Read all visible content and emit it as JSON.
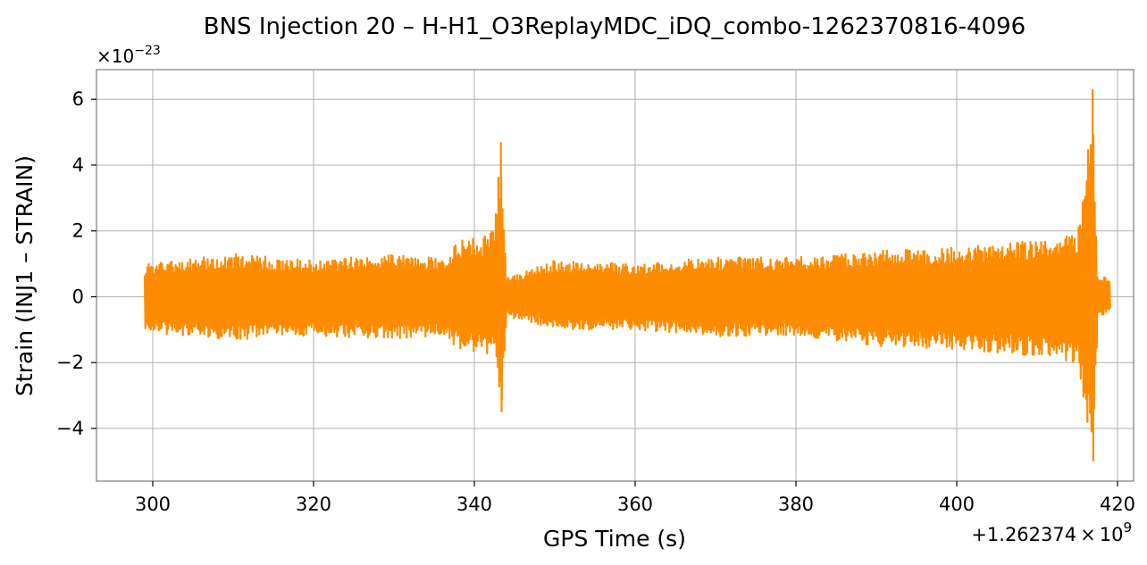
{
  "chart_data": {
    "type": "line",
    "title": "BNS Injection 20 – H-H1_O3ReplayMDC_iDQ_combo-1262370816-4096",
    "xlabel": "GPS Time (s)",
    "ylabel": "Strain (INJ1 – STRAIN)",
    "x_offset_label": "+1.262374",
    "x_offset_exponent": "9",
    "y_scale_label": "×10",
    "y_scale_exponent": "−23",
    "xlim": [
      293,
      422
    ],
    "ylim": [
      -5.6,
      6.9
    ],
    "x_ticks": [
      300,
      320,
      340,
      360,
      380,
      400,
      420
    ],
    "x_tick_labels": [
      "300",
      "320",
      "340",
      "360",
      "380",
      "400",
      "420"
    ],
    "y_ticks": [
      -4,
      -2,
      0,
      2,
      4,
      6
    ],
    "y_tick_labels": [
      "−4",
      "−2",
      "0",
      "2",
      "4",
      "6"
    ],
    "grid": true,
    "series": [
      {
        "color": "#ff8c00",
        "x_range": [
          299,
          419
        ],
        "envelope": [
          {
            "x": 299,
            "upper": 1.0,
            "lower": -1.1
          },
          {
            "x": 310,
            "upper": 1.3,
            "lower": -1.3
          },
          {
            "x": 320,
            "upper": 1.1,
            "lower": -1.2
          },
          {
            "x": 330,
            "upper": 1.3,
            "lower": -1.3
          },
          {
            "x": 336,
            "upper": 1.2,
            "lower": -1.2
          },
          {
            "x": 338,
            "upper": 1.7,
            "lower": -1.6
          },
          {
            "x": 341,
            "upper": 1.8,
            "lower": -1.7
          },
          {
            "x": 342.5,
            "upper": 2.1,
            "lower": -1.8
          },
          {
            "x": 343.3,
            "upper": 4.7,
            "lower": -3.5
          },
          {
            "x": 344,
            "upper": 0.6,
            "lower": -0.6
          },
          {
            "x": 350,
            "upper": 1.1,
            "lower": -1.0
          },
          {
            "x": 360,
            "upper": 1.0,
            "lower": -1.0
          },
          {
            "x": 370,
            "upper": 1.2,
            "lower": -1.2
          },
          {
            "x": 380,
            "upper": 1.2,
            "lower": -1.2
          },
          {
            "x": 390,
            "upper": 1.4,
            "lower": -1.5
          },
          {
            "x": 400,
            "upper": 1.5,
            "lower": -1.6
          },
          {
            "x": 410,
            "upper": 1.7,
            "lower": -1.8
          },
          {
            "x": 415,
            "upper": 1.9,
            "lower": -2.0
          },
          {
            "x": 416.9,
            "upper": 6.3,
            "lower": -5.0
          },
          {
            "x": 417.5,
            "upper": 0.6,
            "lower": -0.6
          },
          {
            "x": 419,
            "upper": 0.6,
            "lower": -0.5
          }
        ]
      }
    ]
  }
}
